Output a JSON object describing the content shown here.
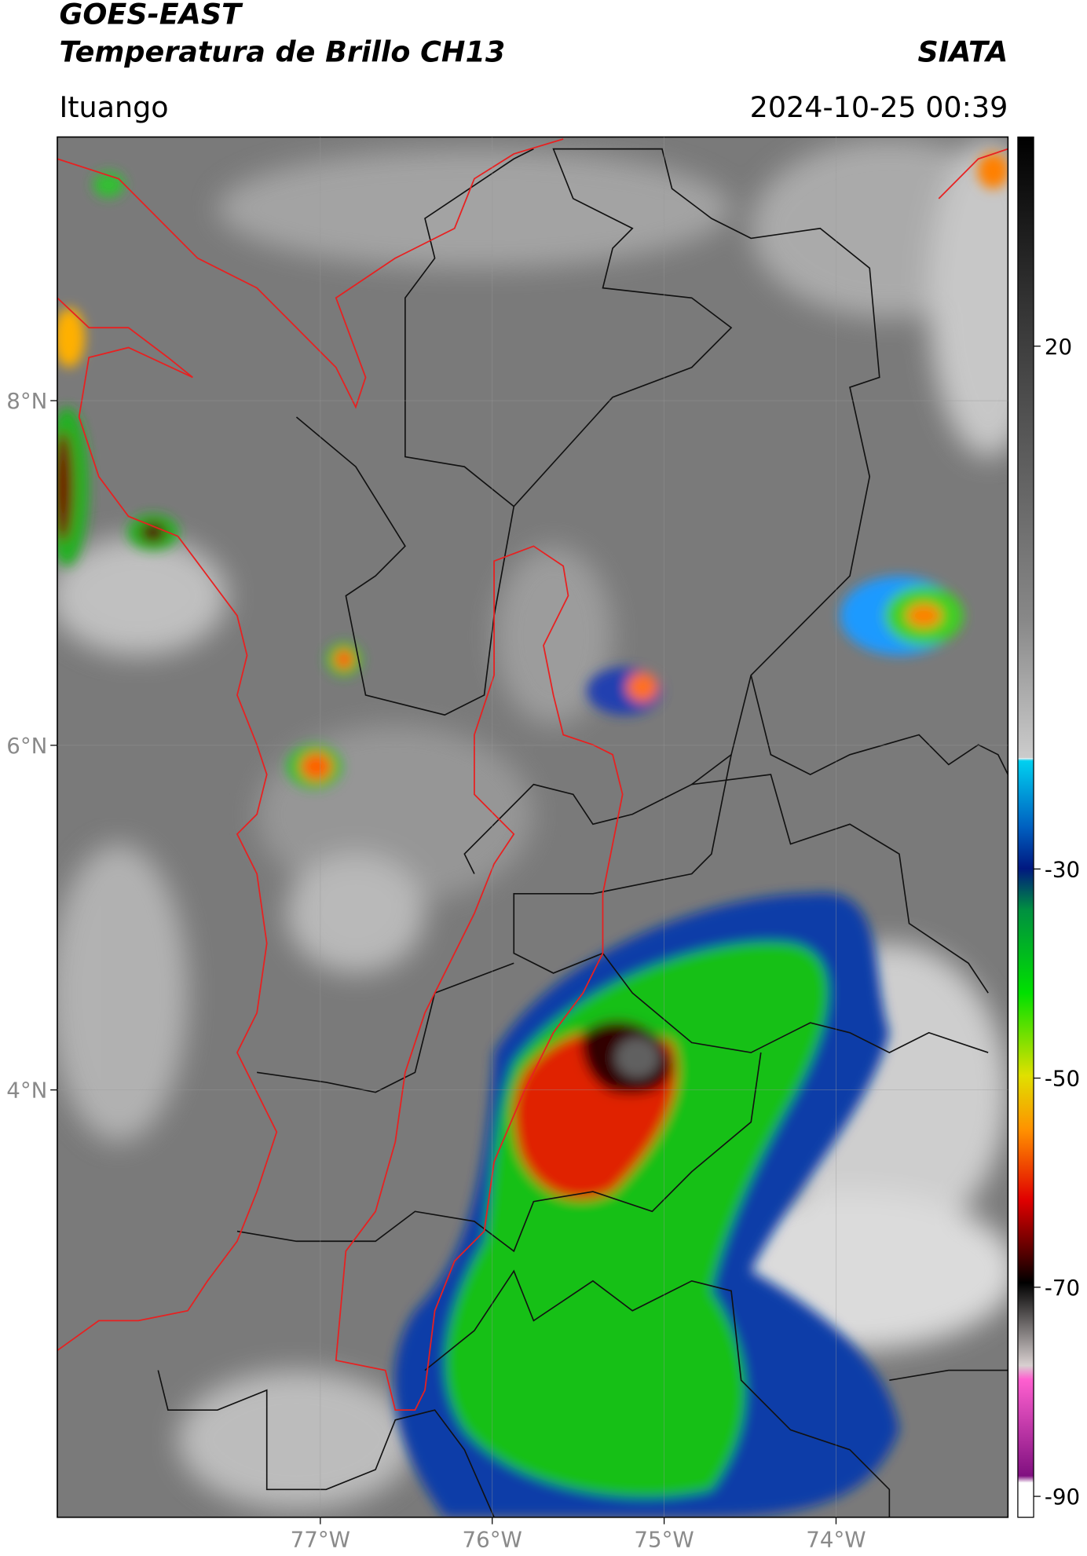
{
  "header": {
    "title": "GOES-EAST",
    "subtitle": "Temperatura de Brillo CH13",
    "brand": "SIATA",
    "location": "Ituango",
    "datetime": "2024-10-25 00:39"
  },
  "map": {
    "lonlim": [
      -78.53,
      -73.0
    ],
    "latlim": [
      1.52,
      9.53
    ],
    "lon_ticks": [
      {
        "value": -77,
        "label": "77°W"
      },
      {
        "value": -76,
        "label": "76°W"
      },
      {
        "value": -75,
        "label": "75°W"
      },
      {
        "value": -74,
        "label": "74°W"
      }
    ],
    "lat_ticks": [
      {
        "value": 8,
        "label": "8°N"
      },
      {
        "value": 6,
        "label": "6°N"
      },
      {
        "value": 4,
        "label": "4°N"
      }
    ]
  },
  "colorbar": {
    "clim": [
      -92,
      40
    ],
    "ticks": [
      20,
      -30,
      -50,
      -70,
      -90
    ]
  }
}
